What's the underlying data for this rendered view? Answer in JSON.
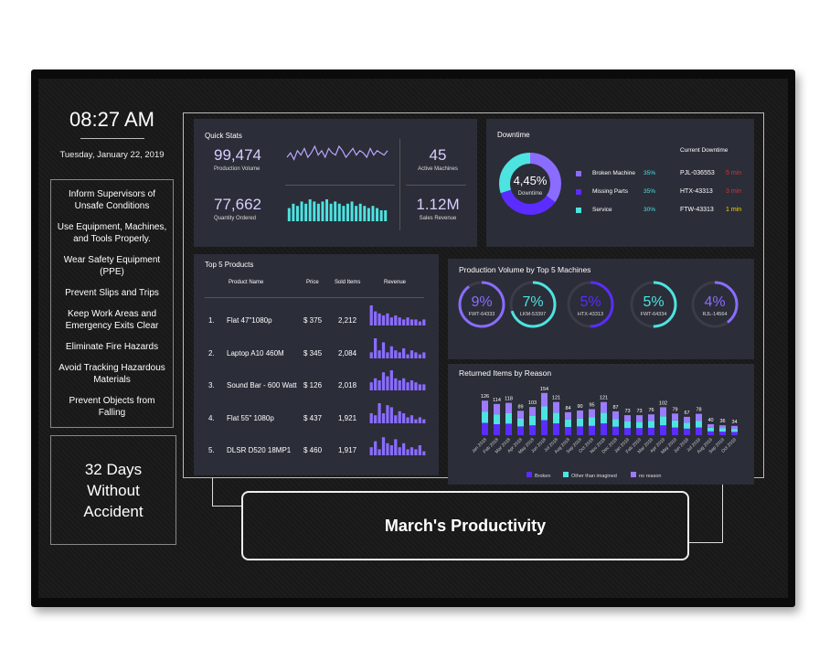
{
  "clock": {
    "time": "08:27 AM",
    "date": "Tuesday, January 22, 2019"
  },
  "safety_rules": [
    "Inform Supervisors of Unsafe Conditions",
    "Use Equipment, Machines, and Tools Properly.",
    "Wear Safety Equipment (PPE)",
    "Prevent Slips and Trips",
    "Keep Work Areas and Emergency Exits Clear",
    "Eliminate Fire Hazards",
    "Avoid Tracking Hazardous Materials",
    "Prevent Objects from Falling"
  ],
  "accident_banner": [
    "32 Days",
    "Without",
    "Accident"
  ],
  "quick_stats": {
    "title": "Quick Stats",
    "stats": [
      {
        "value": "99,474",
        "label": "Production Volume"
      },
      {
        "value": "45",
        "label": "Active Machines"
      },
      {
        "value": "77,662",
        "label": "Quantity Ordered"
      },
      {
        "value": "1.12M",
        "label": "Sales Revenue"
      }
    ],
    "production_trend": [
      5,
      7,
      4,
      8,
      6,
      9,
      5,
      7,
      10,
      6,
      8,
      5,
      9,
      7,
      6,
      10,
      8,
      5,
      7,
      9,
      6,
      8,
      7,
      5,
      9,
      6,
      8,
      7,
      6,
      8
    ],
    "quantity_trend": [
      6,
      8,
      7,
      9,
      8,
      10,
      9,
      8,
      9,
      10,
      8,
      9,
      8,
      7,
      8,
      9,
      7,
      8,
      7,
      6,
      7,
      6,
      5,
      5
    ],
    "line_color": "#b9a8ff",
    "bar_color": "#4de3e0"
  },
  "downtime": {
    "title": "Downtime",
    "center_value": "4,45%",
    "center_label": "Downtime",
    "reasons": [
      "Broken Machine",
      "Missing Parts",
      "Service"
    ],
    "values": [
      35,
      35,
      30
    ],
    "value_labels": [
      "35%",
      "35%",
      "30%"
    ],
    "colors": [
      "#8a6cff",
      "#5b2cff",
      "#4de3e0"
    ],
    "current_title": "Current Downtime",
    "current": [
      {
        "machine": "PJL-036553",
        "duration": "5 min",
        "color": "#e03030"
      },
      {
        "machine": "HTX-43313",
        "duration": "3 min",
        "color": "#e03030"
      },
      {
        "machine": "FTW-43313",
        "duration": "1 min",
        "color": "#ffd400"
      }
    ]
  },
  "top_products": {
    "title": "Top 5 Products",
    "headers": [
      "Product Name",
      "Price",
      "Sold Items",
      "Revenue"
    ],
    "rows": [
      {
        "rank": "1.",
        "name": "Flat 47\"1080p",
        "price": "$ 375",
        "sold": "2,212",
        "revenue_trend": [
          10,
          7,
          6,
          5,
          6,
          4,
          5,
          4,
          3,
          4,
          3,
          3,
          2,
          3
        ]
      },
      {
        "rank": "2.",
        "name": "Laptop A10 460M",
        "price": "$ 345",
        "sold": "2,084",
        "revenue_trend": [
          3,
          10,
          4,
          8,
          3,
          6,
          4,
          3,
          5,
          2,
          4,
          3,
          2,
          3
        ]
      },
      {
        "rank": "3.",
        "name": "Sound Bar - 600 Watt",
        "price": "$ 126",
        "sold": "2,018",
        "revenue_trend": [
          4,
          6,
          5,
          9,
          7,
          10,
          6,
          5,
          6,
          4,
          5,
          4,
          3,
          3
        ]
      },
      {
        "rank": "4.",
        "name": "Flat 55\" 1080p",
        "price": "$ 437",
        "sold": "1,921",
        "revenue_trend": [
          5,
          4,
          10,
          5,
          9,
          8,
          4,
          6,
          5,
          3,
          4,
          2,
          3,
          2
        ]
      },
      {
        "rank": "5.",
        "name": "DLSR D520 18MP1",
        "price": "$ 460",
        "sold": "1,917",
        "revenue_trend": [
          4,
          7,
          3,
          9,
          6,
          5,
          8,
          4,
          6,
          3,
          4,
          3,
          5,
          2
        ]
      }
    ],
    "bar_color": "#8a6cff"
  },
  "machines": {
    "title": "Production Volume by Top 5 Machines",
    "names": [
      "FWT-64333",
      "LKM-53397",
      "HTX-43313",
      "FWT-64334",
      "RJL-14564"
    ],
    "values": [
      9,
      7,
      5,
      5,
      4
    ],
    "value_labels": [
      "9%",
      "7%",
      "5%",
      "5%",
      "4%"
    ],
    "colors": [
      "#8a6cff",
      "#4de3e0",
      "#5b2cff",
      "#4de3e0",
      "#8a6cff"
    ]
  },
  "returns": {
    "title": "Returned Items by Reason",
    "categories": [
      "Jan 2018",
      "Feb 2018",
      "Mar 2018",
      "Apr 2018",
      "May 2018",
      "Jun 2018",
      "Jul 2018",
      "Aug 2018",
      "Sep 2018",
      "Oct 2018",
      "Nov 2018",
      "Dec 2018",
      "Jan 2019",
      "Feb 2019",
      "Mar 2019",
      "Apr 2019",
      "May 2019",
      "Jun 2019",
      "Jul 2019",
      "Aug 2019",
      "Sep 2019",
      "Oct 2019"
    ],
    "series": [
      {
        "name": "Broken",
        "color": "#5b2cff",
        "values": [
          45,
          40,
          42,
          32,
          36,
          55,
          43,
          30,
          32,
          34,
          43,
          31,
          26,
          26,
          27,
          36,
          28,
          24,
          28,
          14,
          13,
          12
        ]
      },
      {
        "name": "Other than imagined",
        "color": "#4de3e0",
        "values": [
          40,
          36,
          38,
          28,
          34,
          50,
          39,
          27,
          29,
          31,
          39,
          28,
          24,
          23,
          25,
          33,
          26,
          22,
          25,
          13,
          12,
          11
        ]
      },
      {
        "name": "no reason",
        "color": "#9b7bff",
        "values": [
          41,
          38,
          38,
          29,
          33,
          49,
          39,
          27,
          29,
          30,
          39,
          28,
          23,
          24,
          24,
          33,
          25,
          21,
          25,
          13,
          11,
          11
        ]
      }
    ],
    "totals": [
      126,
      114,
      118,
      89,
      103,
      154,
      121,
      84,
      90,
      95,
      121,
      87,
      73,
      73,
      76,
      102,
      79,
      67,
      78,
      40,
      36,
      34
    ]
  },
  "banner": "March's Productivity"
}
